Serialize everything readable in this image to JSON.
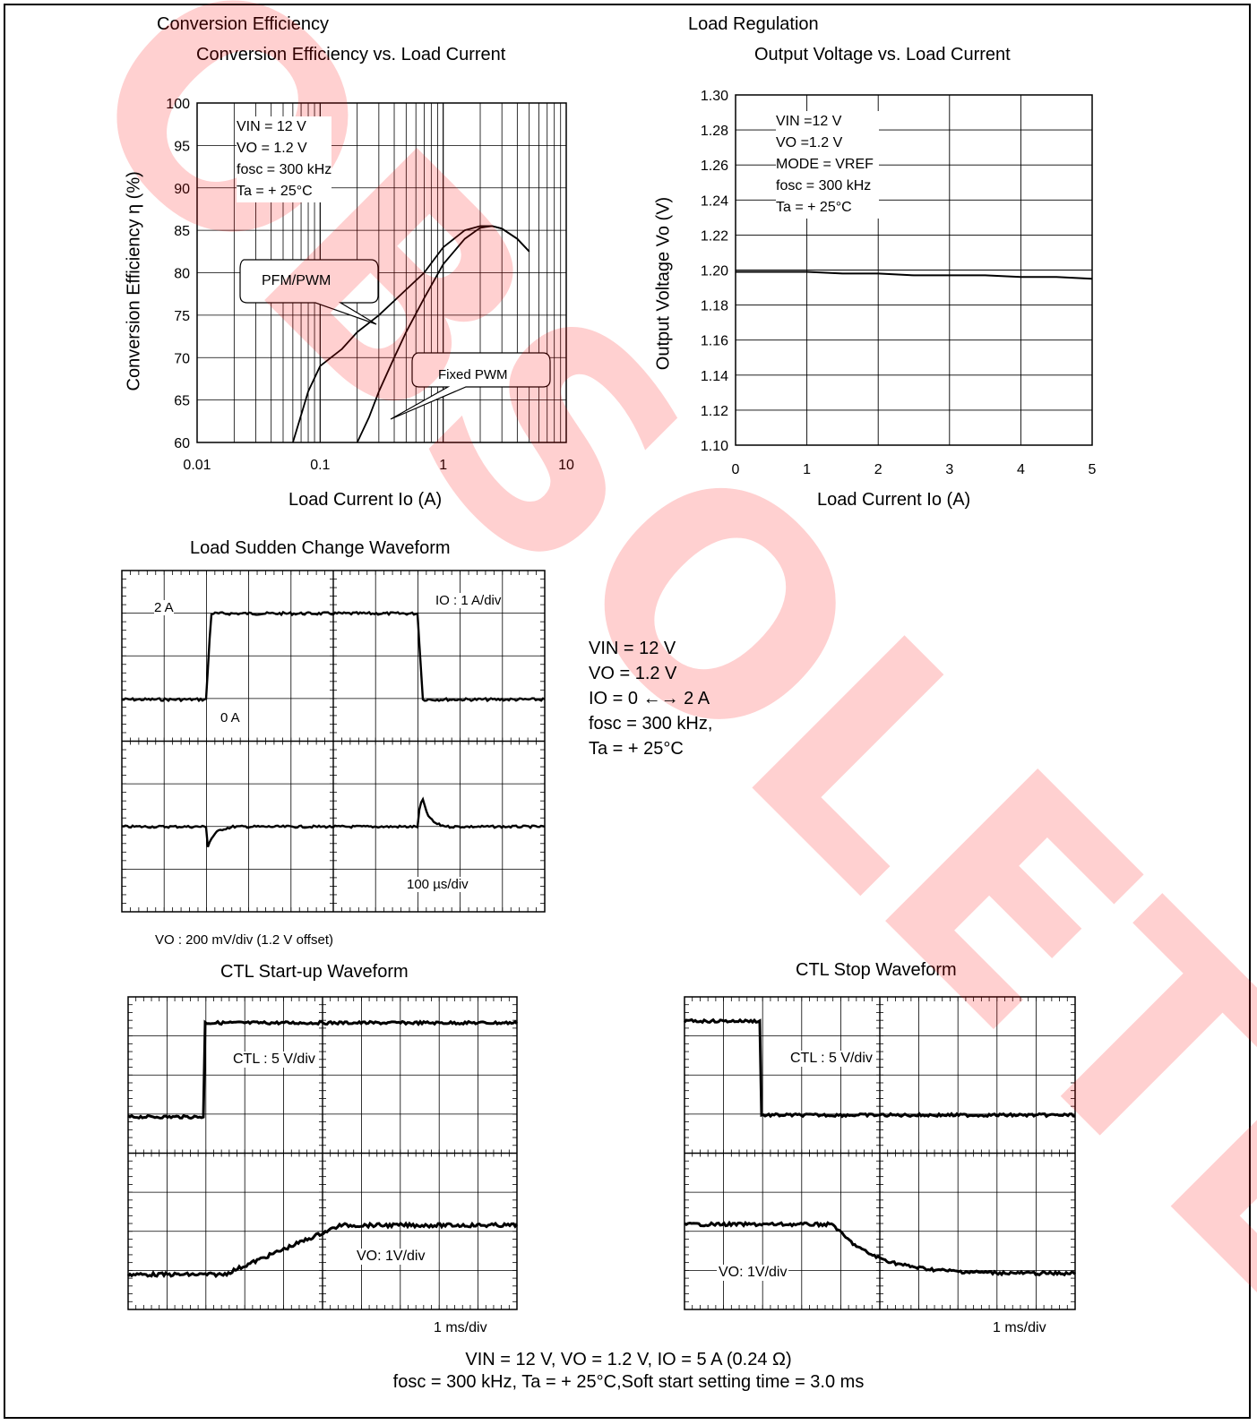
{
  "sections": {
    "conversion_efficiency": "Conversion Efficiency",
    "load_regulation": "Load Regulation"
  },
  "chart_data": [
    {
      "type": "line",
      "title": "Conversion Efficiency vs. Load Current",
      "xlabel": "Load Current Io (A)",
      "ylabel": "Conversion Efficiency η (%)",
      "xscale": "log",
      "xlim": [
        0.01,
        10
      ],
      "ylim": [
        60,
        100
      ],
      "xticks": [
        "0.01",
        "0.1",
        "1",
        "10"
      ],
      "yticks": [
        "60",
        "65",
        "70",
        "75",
        "80",
        "85",
        "90",
        "95",
        "100"
      ],
      "conditions": [
        "VIN = 12 V",
        "VO = 1.2 V",
        "fosc = 300 kHz",
        "Ta = + 25°C"
      ],
      "series": [
        {
          "name": "PFM/PWM",
          "x": [
            0.06,
            0.08,
            0.1,
            0.15,
            0.2,
            0.3,
            0.5,
            0.7,
            1.0,
            1.5,
            2.0,
            2.5,
            3.0,
            4.0,
            5.0
          ],
          "y": [
            60,
            66,
            69,
            71,
            73,
            75,
            78,
            80,
            83,
            85,
            85.5,
            85.5,
            85.2,
            84,
            82.5
          ]
        },
        {
          "name": "Fixed PWM",
          "x": [
            0.2,
            0.25,
            0.3,
            0.4,
            0.5,
            0.7,
            1.0,
            1.5,
            2.0,
            2.5,
            3.0,
            4.0,
            5.0
          ],
          "y": [
            60,
            63,
            66,
            70,
            73,
            77,
            81,
            84,
            85.3,
            85.5,
            85.2,
            84,
            82.5
          ]
        }
      ],
      "callouts": [
        "PFM/PWM",
        "Fixed PWM"
      ],
      "grid": true
    },
    {
      "type": "line",
      "title": "Output Voltage vs. Load Current",
      "xlabel": "Load Current Io (A)",
      "ylabel": "Output Voltage Vo (V)",
      "xlim": [
        0,
        5
      ],
      "ylim": [
        1.1,
        1.3
      ],
      "xticks": [
        "0",
        "1",
        "2",
        "3",
        "4",
        "5"
      ],
      "yticks": [
        "1.10",
        "1.12",
        "1.14",
        "1.16",
        "1.18",
        "1.20",
        "1.22",
        "1.24",
        "1.26",
        "1.28",
        "1.30"
      ],
      "conditions": [
        "VIN =12 V",
        "VO =1.2 V",
        "MODE = VREF",
        "fosc = 300 kHz",
        "Ta = + 25°C"
      ],
      "series": [
        {
          "x": [
            0,
            0.5,
            1.0,
            1.5,
            2.0,
            2.5,
            3.0,
            3.5,
            4.0,
            4.5,
            5.0
          ],
          "y": [
            1.199,
            1.199,
            1.199,
            1.198,
            1.198,
            1.197,
            1.197,
            1.197,
            1.196,
            1.196,
            1.195
          ]
        }
      ],
      "grid": true
    },
    {
      "type": "line",
      "title": "Load Sudden Change Waveform",
      "upper_label": "IO : 1 A/div",
      "level_high": "2 A",
      "level_low": "0 A",
      "time_scale": "100 µs/div",
      "lower_caption": "VO : 200 mV/div (1.2 V offset)",
      "conditions": [
        "VIN = 12 V",
        "VO = 1.2 V",
        "IO = 0 ←→ 2 A",
        "fosc = 300 kHz,",
        "Ta = + 25°C"
      ],
      "divisions_x": 10,
      "divisions_y": 8
    },
    {
      "type": "line",
      "title": "CTL Start-up Waveform",
      "ctl_label": "CTL : 5 V/div",
      "vo_label": "VO: 1V/div",
      "time_scale": "1 ms/div",
      "divisions_x": 10,
      "divisions_y": 8
    },
    {
      "type": "line",
      "title": "CTL Stop Waveform",
      "ctl_label": "CTL : 5 V/div",
      "vo_label": "VO: 1V/div",
      "time_scale": "1 ms/div",
      "divisions_x": 10,
      "divisions_y": 8
    }
  ],
  "footer": {
    "line1": "VIN = 12 V, VO = 1.2 V, IO = 5 A (0.24 Ω)",
    "line2": "fosc = 300 kHz, Ta = + 25°C,Soft start setting time = 3.0 ms"
  },
  "watermark": "OBSOLETE",
  "colors": {
    "watermark": "#ff0000",
    "trace": "#000000",
    "grid": "#000000"
  }
}
